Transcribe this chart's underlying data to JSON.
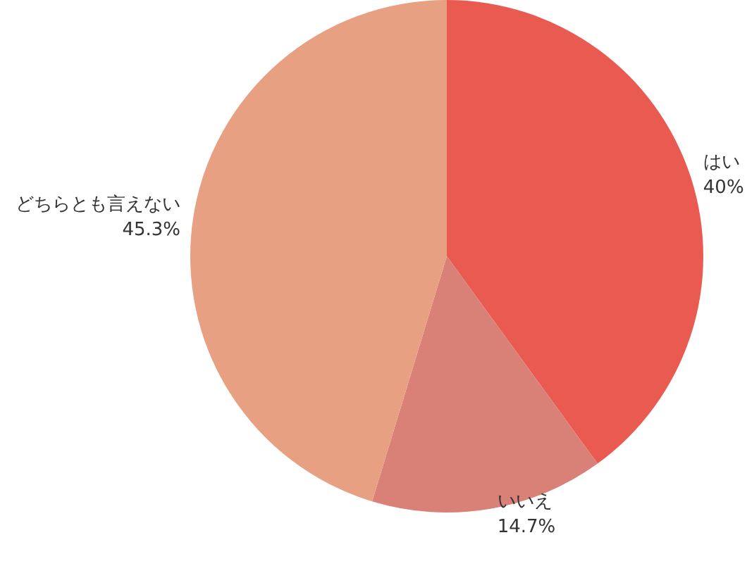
{
  "chart_data": {
    "type": "pie",
    "categories": [
      "はい",
      "いいえ",
      "どちらとも言えない"
    ],
    "values": [
      40,
      14.7,
      45.3
    ],
    "value_labels": [
      "40%",
      "14.7%",
      "45.3%"
    ],
    "colors": [
      "#e95b50",
      "#d98077",
      "#e8a083"
    ],
    "legend": false
  }
}
